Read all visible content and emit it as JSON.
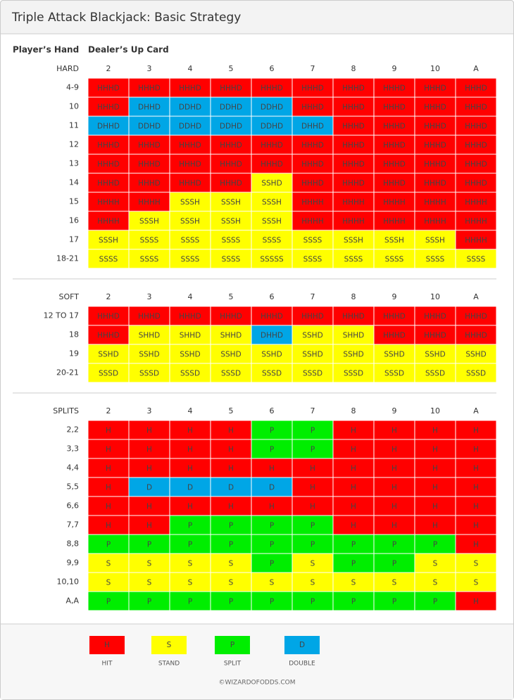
{
  "title": "Triple Attack Blackjack: Basic Strategy",
  "column_headers": {
    "player": "Player’s Hand",
    "dealer": "Dealer’s Up Card"
  },
  "sections": [
    {
      "name": "HARD",
      "dealer_cards": [
        "2",
        "3",
        "4",
        "5",
        "6",
        "7",
        "8",
        "9",
        "10",
        "A"
      ],
      "rows": [
        {
          "hand": "4-9",
          "cells": [
            "HHHD",
            "HHHD",
            "HHHD",
            "HHHD",
            "HHHD",
            "HHHD",
            "HHHD",
            "HHHD",
            "HHHD",
            "HHHD"
          ]
        },
        {
          "hand": "10",
          "cells": [
            "HHHD",
            "DHHD",
            "DDHD",
            "DDHD",
            "DDHD",
            "HHHD",
            "HHHD",
            "HHHD",
            "HHHD",
            "HHHD"
          ]
        },
        {
          "hand": "11",
          "cells": [
            "DHHD",
            "DDHD",
            "DDHD",
            "DDHD",
            "DDHD",
            "DHHD",
            "HHHD",
            "HHHD",
            "HHHD",
            "HHHD"
          ]
        },
        {
          "hand": "12",
          "cells": [
            "HHHD",
            "HHHD",
            "HHHD",
            "HHHD",
            "HHHD",
            "HHHD",
            "HHHD",
            "HHHD",
            "HHHD",
            "HHHD"
          ]
        },
        {
          "hand": "13",
          "cells": [
            "HHHD",
            "HHHD",
            "HHHD",
            "HHHD",
            "HHHD",
            "HHHD",
            "HHHD",
            "HHHD",
            "HHHD",
            "HHHD"
          ]
        },
        {
          "hand": "14",
          "cells": [
            "HHHD",
            "HHHD",
            "HHHD",
            "HHHD",
            "SSHD",
            "HHHD",
            "HHHD",
            "HHHD",
            "HHHD",
            "HHHD"
          ]
        },
        {
          "hand": "15",
          "cells": [
            "HHHH",
            "HHHH",
            "SSSH",
            "SSSH",
            "SSSH",
            "HHHH",
            "HHHH",
            "HHHH",
            "HHHH",
            "HHHH"
          ]
        },
        {
          "hand": "16",
          "cells": [
            "HHHH",
            "SSSH",
            "SSSH",
            "SSSH",
            "SSSH",
            "HHHH",
            "HHHH",
            "HHHH",
            "HHHH",
            "HHHH"
          ]
        },
        {
          "hand": "17",
          "cells": [
            "SSSH",
            "SSSS",
            "SSSS",
            "SSSS",
            "SSSS",
            "SSSS",
            "SSSH",
            "SSSH",
            "SSSH",
            "HHHH"
          ]
        },
        {
          "hand": "18-21",
          "cells": [
            "SSSS",
            "SSSS",
            "SSSS",
            "SSSS",
            "SSSSS",
            "SSSS",
            "SSSS",
            "SSSS",
            "SSSS",
            "SSSS"
          ]
        }
      ]
    },
    {
      "name": "SOFT",
      "dealer_cards": [
        "2",
        "3",
        "4",
        "5",
        "6",
        "7",
        "8",
        "9",
        "10",
        "A"
      ],
      "rows": [
        {
          "hand": "12 TO 17",
          "cells": [
            "HHHD",
            "HHHD",
            "HHHD",
            "HHHD",
            "HHHD",
            "HHHD",
            "HHHD",
            "HHHD",
            "HHHD",
            "HHHD"
          ]
        },
        {
          "hand": "18",
          "cells": [
            "HHHD",
            "SHHD",
            "SHHD",
            "SHHD",
            "DHHD",
            "SSHD",
            "SHHD",
            "HHHD",
            "HHHD",
            "HHHD"
          ]
        },
        {
          "hand": "19",
          "cells": [
            "SSHD",
            "SSHD",
            "SSHD",
            "SSHD",
            "SSHD",
            "SSHD",
            "SSHD",
            "SSHD",
            "SSHD",
            "SSHD"
          ]
        },
        {
          "hand": "20-21",
          "cells": [
            "SSSD",
            "SSSD",
            "SSSD",
            "SSSD",
            "SSSD",
            "SSSD",
            "SSSD",
            "SSSD",
            "SSSD",
            "SSSD"
          ]
        }
      ]
    },
    {
      "name": "SPLITS",
      "dealer_cards": [
        "2",
        "3",
        "4",
        "5",
        "6",
        "7",
        "8",
        "9",
        "10",
        "A"
      ],
      "rows": [
        {
          "hand": "2,2",
          "cells": [
            "H",
            "H",
            "H",
            "H",
            "P",
            "P",
            "H",
            "H",
            "H",
            "H"
          ]
        },
        {
          "hand": "3,3",
          "cells": [
            "H",
            "H",
            "H",
            "H",
            "P",
            "P",
            "H",
            "H",
            "H",
            "H"
          ]
        },
        {
          "hand": "4,4",
          "cells": [
            "H",
            "H",
            "H",
            "H",
            "H",
            "H",
            "H",
            "H",
            "H",
            "H"
          ]
        },
        {
          "hand": "5,5",
          "cells": [
            "H",
            "D",
            "D",
            "D",
            "D",
            "H",
            "H",
            "H",
            "H",
            "H"
          ]
        },
        {
          "hand": "6,6",
          "cells": [
            "H",
            "H",
            "H",
            "H",
            "H",
            "H",
            "H",
            "H",
            "H",
            "H"
          ]
        },
        {
          "hand": "7,7",
          "cells": [
            "H",
            "H",
            "P",
            "P",
            "P",
            "P",
            "H",
            "H",
            "H",
            "H"
          ]
        },
        {
          "hand": "8,8",
          "cells": [
            "P",
            "P",
            "P",
            "P",
            "P",
            "P",
            "P",
            "P",
            "P",
            "H"
          ]
        },
        {
          "hand": "9,9",
          "cells": [
            "S",
            "S",
            "S",
            "S",
            "P",
            "S",
            "P",
            "P",
            "S",
            "S"
          ]
        },
        {
          "hand": "10,10",
          "cells": [
            "S",
            "S",
            "S",
            "S",
            "S",
            "S",
            "S",
            "S",
            "S",
            "S"
          ]
        },
        {
          "hand": "A,A",
          "cells": [
            "P",
            "P",
            "P",
            "P",
            "P",
            "P",
            "P",
            "P",
            "P",
            "H"
          ]
        }
      ]
    }
  ],
  "legend": [
    {
      "code": "H",
      "label": "HIT",
      "color": "#ff0000"
    },
    {
      "code": "S",
      "label": "STAND",
      "color": "#ffff00"
    },
    {
      "code": "P",
      "label": "SPLIT",
      "color": "#00ee00"
    },
    {
      "code": "D",
      "label": "DOUBLE",
      "color": "#00a6e6"
    }
  ],
  "footer": "©WIZARDOFODDS.COM"
}
